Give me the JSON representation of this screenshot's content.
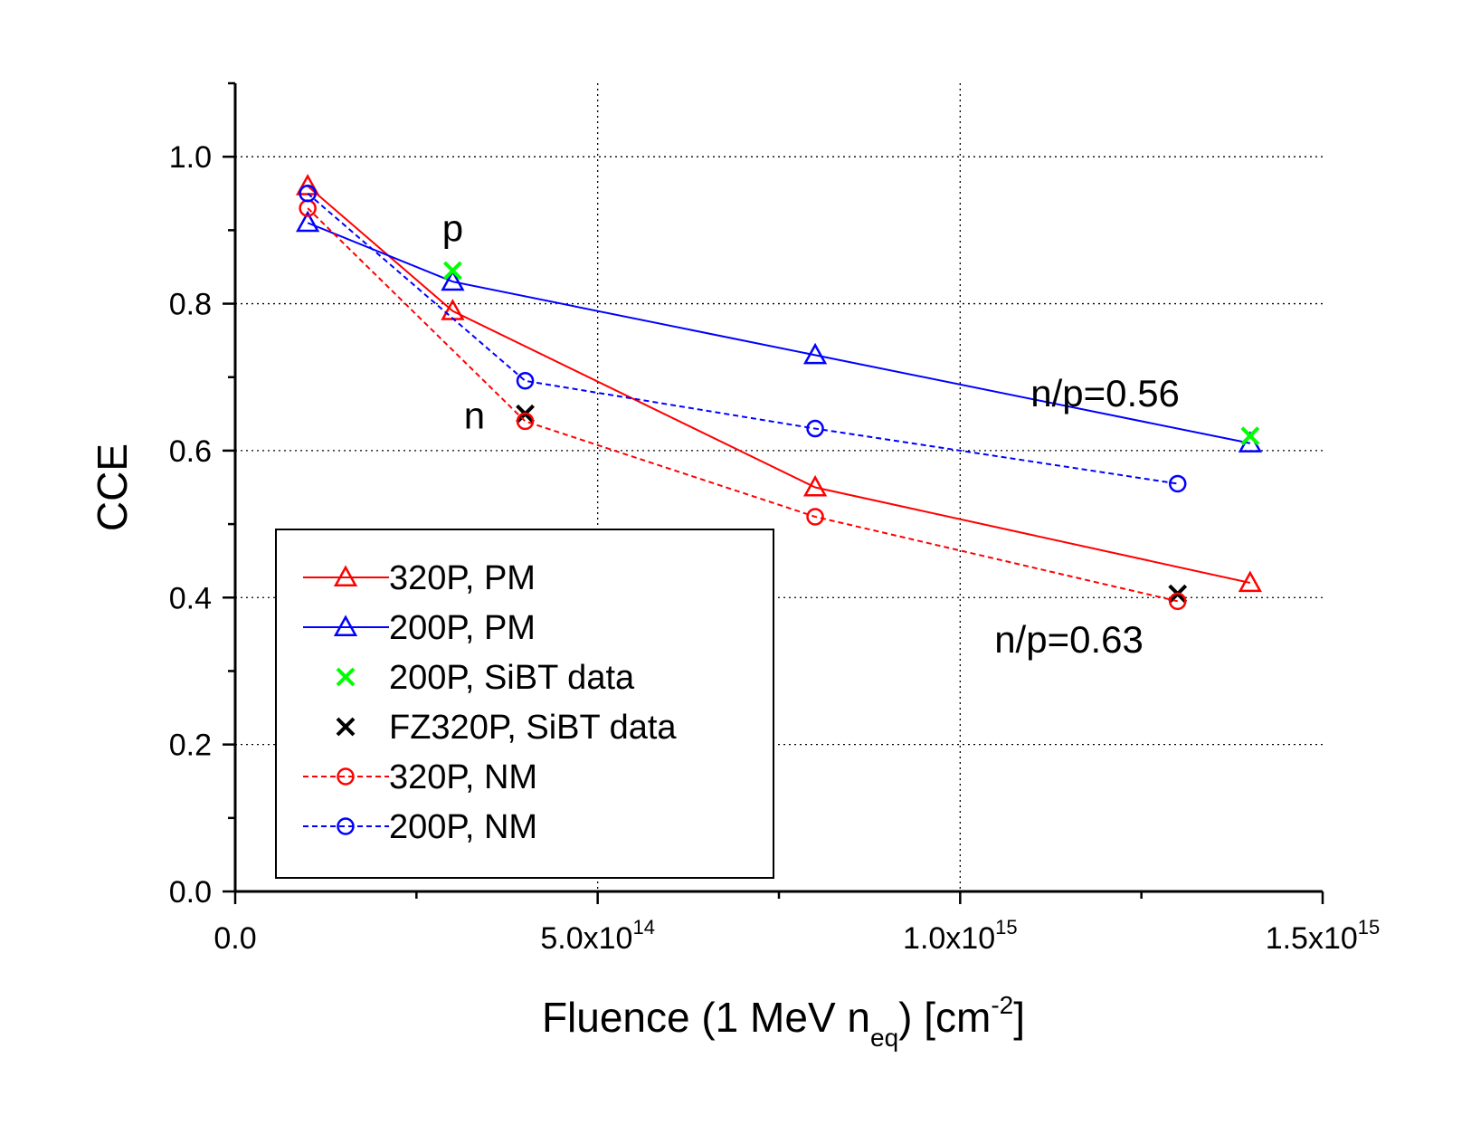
{
  "chart_data": {
    "type": "line",
    "xlabel": {
      "main": "Fluence (1 MeV n",
      "sub": "eq",
      "mid": ") [cm",
      "sup": "-2",
      "end": "]"
    },
    "ylabel": "CCE",
    "xlim": [
      0,
      1500000000000000.0
    ],
    "ylim": [
      0,
      1.1
    ],
    "x_ticks": [
      {
        "value": 0,
        "mantissa": "0.0",
        "exp": ""
      },
      {
        "value": 500000000000000.0,
        "mantissa": "5.0x10",
        "exp": "14"
      },
      {
        "value": 1000000000000000.0,
        "mantissa": "1.0x10",
        "exp": "15"
      },
      {
        "value": 1500000000000000.0,
        "mantissa": "1.5x10",
        "exp": "15"
      }
    ],
    "y_ticks": [
      "0.0",
      "0.2",
      "0.4",
      "0.6",
      "0.8",
      "1.0"
    ],
    "grid": true,
    "series": [
      {
        "name": "320P,  PM",
        "color": "#ff0000",
        "marker": "triangle",
        "line": "solid",
        "x": [
          100000000000000.0,
          300000000000000.0,
          800000000000000.0,
          1400000000000000.0
        ],
        "y": [
          0.96,
          0.79,
          0.55,
          0.42
        ]
      },
      {
        "name": "200P,  PM",
        "color": "#0000ff",
        "marker": "triangle",
        "line": "solid",
        "x": [
          100000000000000.0,
          300000000000000.0,
          800000000000000.0,
          1400000000000000.0
        ],
        "y": [
          0.91,
          0.83,
          0.73,
          0.61
        ]
      },
      {
        "name": " 200P,  SiBT data",
        "color": "#00ff00",
        "marker": "x",
        "line": "none",
        "x": [
          300000000000000.0,
          1400000000000000.0
        ],
        "y": [
          0.845,
          0.62
        ]
      },
      {
        "name": "FZ320P, SiBT data",
        "color": "#000000",
        "marker": "x",
        "line": "none",
        "x": [
          400000000000000.0,
          1300000000000000.0
        ],
        "y": [
          0.65,
          0.405
        ]
      },
      {
        "name": "320P, NM",
        "color": "#ff0000",
        "marker": "circle",
        "line": "dashed",
        "x": [
          100000000000000.0,
          400000000000000.0,
          800000000000000.0,
          1300000000000000.0
        ],
        "y": [
          0.93,
          0.64,
          0.51,
          0.395
        ]
      },
      {
        "name": "200P, NM",
        "color": "#0000ff",
        "marker": "circle",
        "line": "dashed",
        "x": [
          100000000000000.0,
          400000000000000.0,
          800000000000000.0,
          1300000000000000.0
        ],
        "y": [
          0.95,
          0.695,
          0.63,
          0.555
        ]
      }
    ],
    "annotations": [
      {
        "text": "p",
        "x": 300000000000000.0,
        "y": 0.885
      },
      {
        "text": "n",
        "x": 330000000000000.0,
        "y": 0.63
      },
      {
        "text": "n/p=0.56",
        "x": 1200000000000000.0,
        "y": 0.66
      },
      {
        "text": "n/p=0.63",
        "x": 1150000000000000.0,
        "y": 0.325
      }
    ],
    "legend_position": "lower-left"
  }
}
